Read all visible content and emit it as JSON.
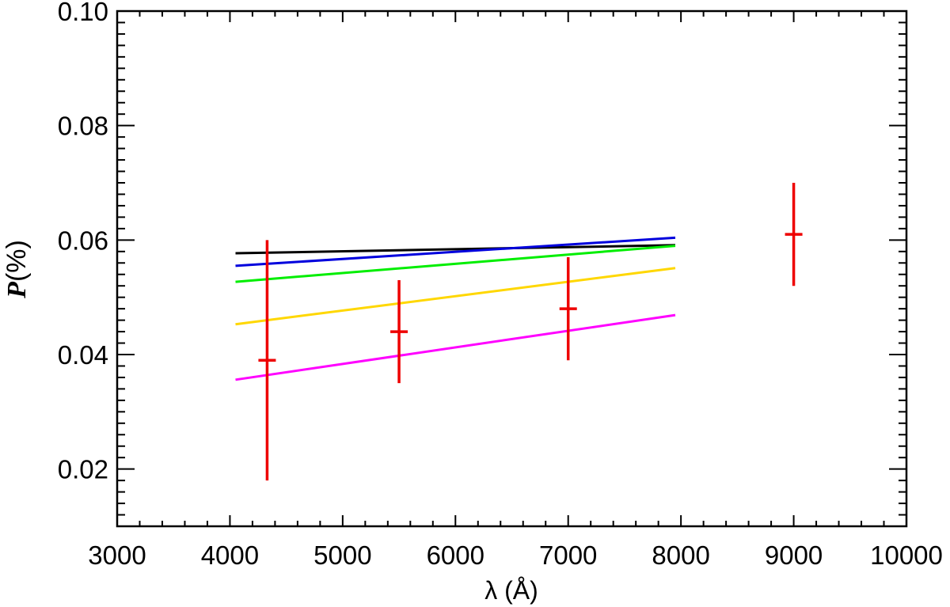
{
  "chart_data": {
    "type": "line",
    "title": "",
    "xlabel": "λ (Å)",
    "ylabel_main": "P",
    "ylabel_suffix": "(%)",
    "xlim": [
      3000,
      10000
    ],
    "ylim": [
      0.01,
      0.1
    ],
    "x_ticks": [
      3000,
      4000,
      5000,
      6000,
      7000,
      8000,
      9000,
      10000
    ],
    "y_ticks": [
      "0.02",
      "0.04",
      "0.06",
      "0.08",
      "0.10"
    ],
    "grid": false,
    "series": [
      {
        "color": "#000000",
        "x": [
          4050,
          7950
        ],
        "y": [
          0.0577,
          0.0591
        ]
      },
      {
        "color": "#0000dd",
        "x": [
          4050,
          7950
        ],
        "y": [
          0.0555,
          0.0604
        ]
      },
      {
        "color": "#00ee00",
        "x": [
          4050,
          7950
        ],
        "y": [
          0.0527,
          0.059
        ]
      },
      {
        "color": "#ffd700",
        "x": [
          4050,
          7950
        ],
        "y": [
          0.0453,
          0.0551
        ]
      },
      {
        "color": "#ff00ff",
        "x": [
          4050,
          7950
        ],
        "y": [
          0.0356,
          0.0469
        ]
      }
    ],
    "observations": {
      "color": "#ee0000",
      "points": [
        {
          "x": 4330,
          "y": 0.039,
          "y_low": 0.018,
          "y_high": 0.06
        },
        {
          "x": 5500,
          "y": 0.044,
          "y_low": 0.035,
          "y_high": 0.053
        },
        {
          "x": 7000,
          "y": 0.048,
          "y_low": 0.039,
          "y_high": 0.057
        },
        {
          "x": 9000,
          "y": 0.061,
          "y_low": 0.052,
          "y_high": 0.07
        }
      ]
    }
  }
}
